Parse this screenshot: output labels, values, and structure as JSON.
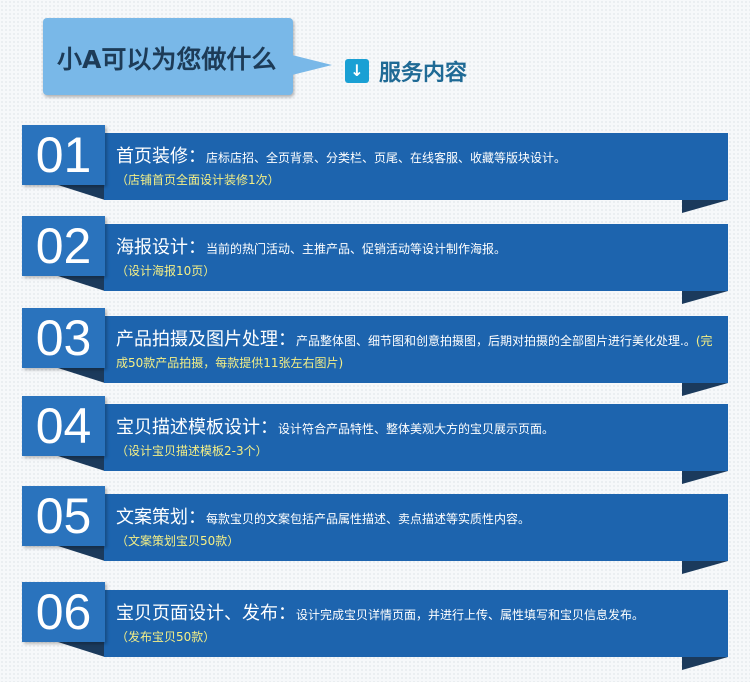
{
  "header": {
    "bubble_title": "小A可以为您做什么",
    "section_icon": "arrow-down-icon",
    "section_title": "服务内容"
  },
  "colors": {
    "banner": "#1d64ae",
    "number_box": "#2a73bd",
    "note": "#f4ef86",
    "bubble": "#79b8e8"
  },
  "items": [
    {
      "number": "01",
      "title": "首页装修：",
      "desc": "店标店招、全页背景、分类栏、页尾、在线客服、收藏等版块设计。",
      "note": "（店铺首页全面设计装修1次）"
    },
    {
      "number": "02",
      "title": "海报设计：",
      "desc": "当前的热门活动、主推产品、促销活动等设计制作海报。",
      "note": "（设计海报10页）"
    },
    {
      "number": "03",
      "title": "产品拍摄及图片处理：",
      "desc": "产品整体图、细节图和创意拍摄图，后期对拍摄的全部图片进行美化处理.。",
      "note": "(完成50款产品拍摄，每款提供11张左右图片)"
    },
    {
      "number": "04",
      "title": "宝贝描述模板设计：",
      "desc": "设计符合产品特性、整体美观大方的宝贝展示页面。",
      "note": "（设计宝贝描述模板2-3个）"
    },
    {
      "number": "05",
      "title": "文案策划：",
      "desc": "每款宝贝的文案包括产品属性描述、卖点描述等实质性内容。",
      "note": "（文案策划宝贝50款）"
    },
    {
      "number": "06",
      "title": "宝贝页面设计、发布：",
      "desc": "设计完成宝贝详情页面，并进行上传、属性填写和宝贝信息发布。",
      "note": "（发布宝贝50款）"
    }
  ]
}
